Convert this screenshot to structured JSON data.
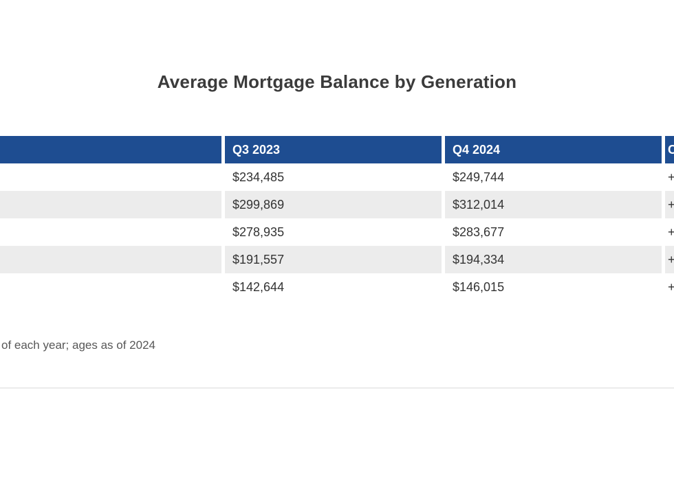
{
  "title": "Average Mortgage Balance by Generation",
  "colors": {
    "header_background": "#1e4d91",
    "header_text": "#ffffff",
    "stripe_row": "#ececec",
    "body_text": "#333333",
    "footnote_text": "#575757",
    "divider": "#ebebeb"
  },
  "table": {
    "headers": {
      "generation": "",
      "q3_2023": "Q3 2023",
      "q4_2024": "Q4 2024",
      "change_truncated": "C"
    },
    "rows": [
      {
        "generation": "",
        "q3_2023": "$234,485",
        "q4_2024": "$249,744",
        "change_truncated": "+"
      },
      {
        "generation": "",
        "q3_2023": "$299,869",
        "q4_2024": "$312,014",
        "change_truncated": "+"
      },
      {
        "generation": "",
        "q3_2023": "$278,935",
        "q4_2024": "$283,677",
        "change_truncated": "+"
      },
      {
        "generation": "",
        "q3_2023": "$191,557",
        "q4_2024": "$194,334",
        "change_truncated": "+"
      },
      {
        "generation": "",
        "q3_2023": "$142,644",
        "q4_2024": "$146,015",
        "change_truncated": "+"
      }
    ]
  },
  "footnote": "of each year; ages as of 2024",
  "chart_data": {
    "type": "table",
    "title": "Average Mortgage Balance by Generation",
    "columns": [
      "",
      "Q3 2023",
      "Q4 2024",
      "C"
    ],
    "rows": [
      [
        "",
        "$234,485",
        "$249,744",
        "+"
      ],
      [
        "",
        "$299,869",
        "$312,014",
        "+"
      ],
      [
        "",
        "$278,935",
        "$283,677",
        "+"
      ],
      [
        "",
        "$191,557",
        "$194,334",
        "+"
      ],
      [
        "",
        "$142,644",
        "$146,015",
        "+"
      ]
    ],
    "values_q3_2023": [
      234485,
      299869,
      278935,
      191557,
      142644
    ],
    "values_q4_2024": [
      249744,
      312014,
      283677,
      194334,
      146015
    ],
    "footnote": "of each year; ages as of 2024",
    "layout_hints": "header row dark blue, zebra striped rows, first column and change column clipped by viewport"
  }
}
